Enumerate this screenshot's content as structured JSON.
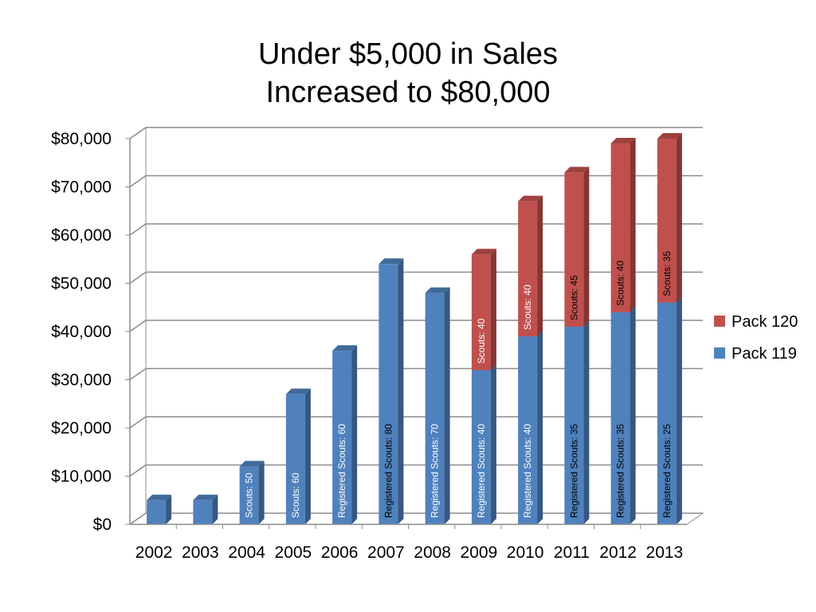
{
  "chart_data": {
    "type": "bar",
    "stacked": true,
    "title": [
      "Under $5,000 in Sales",
      "Increased to $80,000"
    ],
    "categories": [
      "2002",
      "2003",
      "2004",
      "2005",
      "2006",
      "2007",
      "2008",
      "2009",
      "2010",
      "2011",
      "2012",
      "2013"
    ],
    "series": [
      {
        "name": "Pack 119",
        "color": "#4F81BD",
        "values": [
          5000,
          5000,
          12000,
          27000,
          36000,
          54000,
          48000,
          32000,
          39000,
          41000,
          44000,
          46000
        ],
        "labels": [
          "",
          "",
          "Scouts: 50",
          "Scouts: 60",
          "Registered Scouts: 60",
          "Registered Scouts: 80",
          "Registered Scouts:  70",
          "Registered Scouts: 40",
          "Registered Scouts: 40",
          "Registered Scouts: 35",
          "Registered Scouts: 35",
          "Registered Scouts: 25"
        ]
      },
      {
        "name": "Pack 120",
        "color": "#C0504D",
        "values": [
          0,
          0,
          0,
          0,
          0,
          0,
          0,
          24000,
          28000,
          32000,
          35000,
          34000
        ],
        "labels": [
          "",
          "",
          "",
          "",
          "",
          "",
          "",
          "Scouts: 40",
          "Scouts:  40",
          "Scouts:  45",
          "Scouts:  40",
          "Scouts:  35"
        ]
      }
    ],
    "y_ticks": [
      "$0",
      "$10,000",
      "$20,000",
      "$30,000",
      "$40,000",
      "$50,000",
      "$60,000",
      "$70,000",
      "$80,000"
    ],
    "ylim": [
      0,
      80000
    ],
    "grid": true,
    "legend_position": "right"
  }
}
